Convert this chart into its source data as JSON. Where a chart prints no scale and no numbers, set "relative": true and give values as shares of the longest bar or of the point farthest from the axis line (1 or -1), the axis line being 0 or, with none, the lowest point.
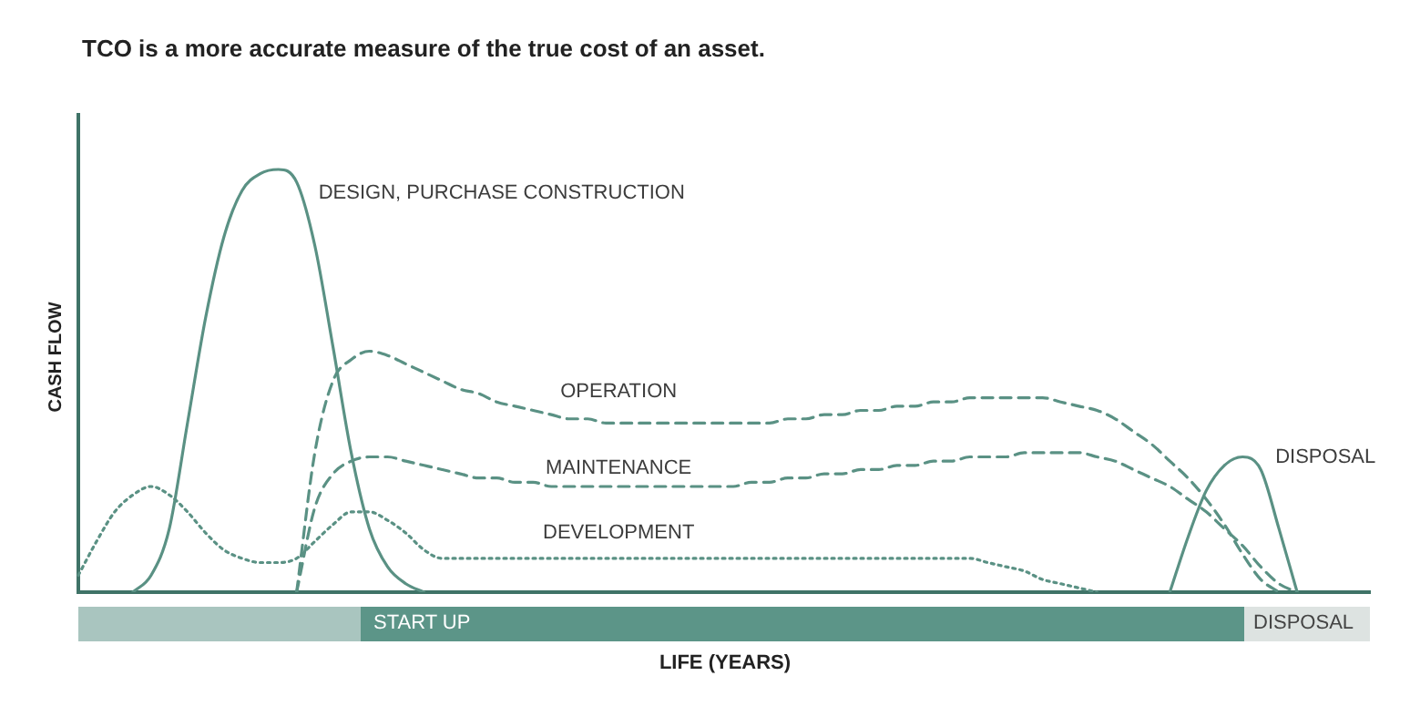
{
  "chart_data": {
    "type": "line",
    "relative": true,
    "title": "TCO is a more accurate measure of the true cost of an asset.",
    "xlabel": "LIFE (YEARS)",
    "ylabel": "CASH FLOW",
    "marker": "none",
    "grid": false,
    "legend": false,
    "annotations": [
      "START UP",
      "DISPOSAL"
    ],
    "categories": [
      null,
      null,
      null,
      null,
      null,
      null,
      null,
      null,
      null,
      null,
      null,
      null,
      null,
      null,
      null,
      null,
      null,
      null,
      null,
      null,
      null,
      null,
      null,
      null,
      null,
      null,
      null,
      null,
      null,
      null,
      null,
      null,
      null,
      null,
      null,
      null,
      null,
      null,
      null,
      null,
      null,
      null,
      null,
      null,
      null,
      null,
      null,
      null,
      null,
      null,
      null,
      null,
      null,
      null,
      null,
      null,
      null,
      null,
      null,
      null,
      null,
      null,
      null,
      null,
      null,
      null,
      null,
      null,
      null,
      null,
      null,
      null
    ],
    "series": [
      {
        "name": "DESIGN, PURCHASE CONSTRUCTION",
        "color": "#5a9184",
        "line_style": "solid",
        "values": [
          null,
          null,
          null,
          0,
          0.04,
          0.15,
          0.4,
          0.65,
          0.84,
          0.95,
          0.99,
          1,
          0.97,
          0.82,
          0.58,
          0.33,
          0.15,
          0.06,
          0.02,
          0,
          null,
          null,
          null,
          null,
          null,
          null,
          null,
          null,
          null,
          null,
          null,
          null,
          null,
          null,
          null,
          null,
          null,
          null,
          null,
          null,
          null,
          null,
          null,
          null,
          null,
          null,
          null,
          null,
          null,
          null,
          null,
          null,
          null,
          null,
          null,
          null,
          null,
          null,
          null,
          null,
          null,
          null,
          null,
          null,
          null,
          null,
          null,
          null,
          null,
          null,
          null,
          null
        ]
      },
      {
        "name": "OPERATION",
        "color": "#5a9184",
        "line_style": "dashed",
        "values": [
          null,
          null,
          null,
          null,
          null,
          null,
          null,
          null,
          null,
          null,
          null,
          null,
          0,
          0.33,
          0.5,
          0.55,
          0.57,
          0.56,
          0.54,
          0.52,
          0.5,
          0.48,
          0.47,
          0.45,
          0.44,
          0.43,
          0.42,
          0.41,
          0.41,
          0.4,
          0.4,
          0.4,
          0.4,
          0.4,
          0.4,
          0.4,
          0.4,
          0.4,
          0.4,
          0.41,
          0.41,
          0.42,
          0.42,
          0.43,
          0.43,
          0.44,
          0.44,
          0.45,
          0.45,
          0.46,
          0.46,
          0.46,
          0.46,
          0.46,
          0.45,
          0.44,
          0.43,
          0.41,
          0.38,
          0.35,
          0.31,
          0.27,
          0.22,
          0.16,
          0.09,
          0.03,
          0,
          null,
          null,
          null,
          null,
          null
        ]
      },
      {
        "name": "MAINTENANCE",
        "color": "#5a9184",
        "line_style": "dashed",
        "values": [
          null,
          null,
          null,
          null,
          null,
          null,
          null,
          null,
          null,
          null,
          null,
          null,
          0,
          0.2,
          0.28,
          0.31,
          0.32,
          0.32,
          0.31,
          0.3,
          0.29,
          0.28,
          0.27,
          0.27,
          0.26,
          0.26,
          0.25,
          0.25,
          0.25,
          0.25,
          0.25,
          0.25,
          0.25,
          0.25,
          0.25,
          0.25,
          0.25,
          0.26,
          0.26,
          0.27,
          0.27,
          0.28,
          0.28,
          0.29,
          0.29,
          0.3,
          0.3,
          0.31,
          0.31,
          0.32,
          0.32,
          0.32,
          0.33,
          0.33,
          0.33,
          0.33,
          0.32,
          0.31,
          0.29,
          0.27,
          0.25,
          0.22,
          0.19,
          0.15,
          0.11,
          0.06,
          0.02,
          0,
          null,
          null,
          null,
          null
        ]
      },
      {
        "name": "DEVELOPMENT",
        "color": "#5a9184",
        "line_style": "dotted",
        "values": [
          0.04,
          0.12,
          0.19,
          0.23,
          0.25,
          0.23,
          0.19,
          0.14,
          0.1,
          0.08,
          0.07,
          0.07,
          0.08,
          0.12,
          0.16,
          0.19,
          0.19,
          0.17,
          0.14,
          0.1,
          0.08,
          0.08,
          0.08,
          0.08,
          0.08,
          0.08,
          0.08,
          0.08,
          0.08,
          0.08,
          0.08,
          0.08,
          0.08,
          0.08,
          0.08,
          0.08,
          0.08,
          0.08,
          0.08,
          0.08,
          0.08,
          0.08,
          0.08,
          0.08,
          0.08,
          0.08,
          0.08,
          0.08,
          0.08,
          0.08,
          0.07,
          0.06,
          0.05,
          0.03,
          0.02,
          0.01,
          0,
          null,
          null,
          null,
          null,
          null,
          null,
          null,
          null,
          null,
          null,
          null,
          null,
          null,
          null,
          null
        ]
      },
      {
        "name": "DISPOSAL",
        "color": "#5a9184",
        "line_style": "solid",
        "values": [
          null,
          null,
          null,
          null,
          null,
          null,
          null,
          null,
          null,
          null,
          null,
          null,
          null,
          null,
          null,
          null,
          null,
          null,
          null,
          null,
          null,
          null,
          null,
          null,
          null,
          null,
          null,
          null,
          null,
          null,
          null,
          null,
          null,
          null,
          null,
          null,
          null,
          null,
          null,
          null,
          null,
          null,
          null,
          null,
          null,
          null,
          null,
          null,
          null,
          null,
          null,
          null,
          null,
          null,
          null,
          null,
          null,
          null,
          null,
          null,
          0,
          0.13,
          0.24,
          0.3,
          0.32,
          0.29,
          0.15,
          0,
          null,
          null,
          null,
          null
        ]
      }
    ]
  }
}
